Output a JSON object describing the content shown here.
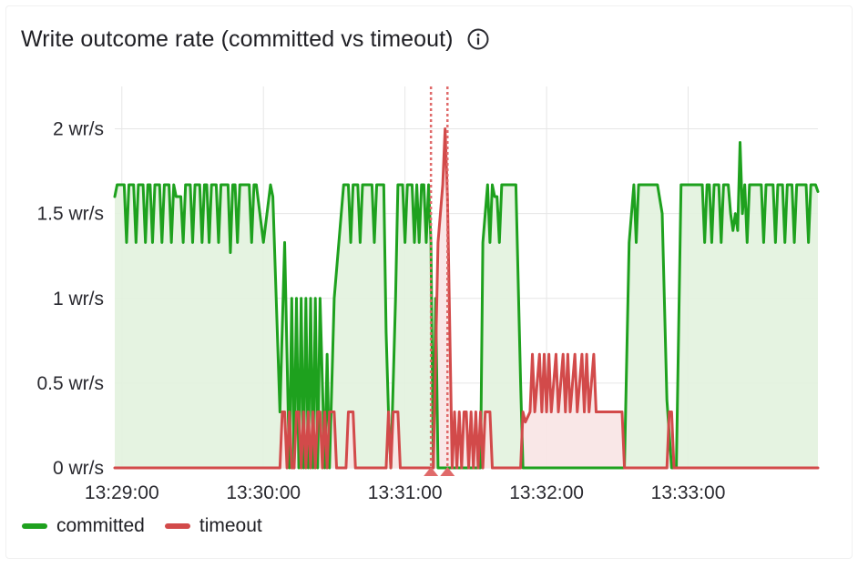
{
  "panel": {
    "title": "Write outcome rate (committed vs timeout)",
    "info_icon": "info-circle-icon"
  },
  "colors": {
    "committed_line": "#1ea11e",
    "committed_fill": "#e2f2de",
    "timeout_line": "#d24a4a",
    "timeout_fill": "#f8e4e4",
    "grid": "#e6e6e6",
    "axis_text": "#2a2a30",
    "annotation": "#e06a6a"
  },
  "chart_data": {
    "type": "area",
    "title": "Write outcome rate (committed vs timeout)",
    "xlabel": "",
    "ylabel": "",
    "x_unit": "time (HH:MM:SS)",
    "xlim": [
      "13:28:57",
      "13:33:55"
    ],
    "ylim": [
      0,
      2.25
    ],
    "x_ticks": [
      "13:29:00",
      "13:30:00",
      "13:31:00",
      "13:32:00",
      "13:33:00"
    ],
    "y_ticks": [
      {
        "value": 0,
        "label": "0 wr/s"
      },
      {
        "value": 0.5,
        "label": "0.5 wr/s"
      },
      {
        "value": 1,
        "label": "1 wr/s"
      },
      {
        "value": 1.5,
        "label": "1.5 wr/s"
      },
      {
        "value": 2,
        "label": "2 wr/s"
      }
    ],
    "grid": true,
    "legend_position": "bottom-left",
    "annotations": [
      {
        "type": "vertical-dashed-line",
        "x": "13:31:11"
      },
      {
        "type": "vertical-dashed-line",
        "x": "13:31:18"
      }
    ],
    "series": [
      {
        "name": "committed",
        "color": "#1ea11e",
        "fill": true,
        "points": [
          [
            "13:28:57",
            1.6
          ],
          [
            "13:28:58",
            1.67
          ],
          [
            "13:29:01",
            1.67
          ],
          [
            "13:29:02",
            1.33
          ],
          [
            "13:29:03",
            1.67
          ],
          [
            "13:29:05",
            1.67
          ],
          [
            "13:29:06",
            1.33
          ],
          [
            "13:29:07",
            1.67
          ],
          [
            "13:29:09",
            1.67
          ],
          [
            "13:29:10",
            1.33
          ],
          [
            "13:29:11",
            1.67
          ],
          [
            "13:29:12",
            1.67
          ],
          [
            "13:29:13",
            1.33
          ],
          [
            "13:29:14",
            1.67
          ],
          [
            "13:29:16",
            1.67
          ],
          [
            "13:29:17",
            1.33
          ],
          [
            "13:29:18",
            1.67
          ],
          [
            "13:29:20",
            1.67
          ],
          [
            "13:29:21",
            1.33
          ],
          [
            "13:29:22",
            1.67
          ],
          [
            "13:29:23",
            1.6
          ],
          [
            "13:29:25",
            1.6
          ],
          [
            "13:29:26",
            1.33
          ],
          [
            "13:29:27",
            1.67
          ],
          [
            "13:29:29",
            1.67
          ],
          [
            "13:29:30",
            1.33
          ],
          [
            "13:29:31",
            1.67
          ],
          [
            "13:29:33",
            1.67
          ],
          [
            "13:29:34",
            1.33
          ],
          [
            "13:29:35",
            1.67
          ],
          [
            "13:29:36",
            1.67
          ],
          [
            "13:29:37",
            1.33
          ],
          [
            "13:29:38",
            1.67
          ],
          [
            "13:29:40",
            1.67
          ],
          [
            "13:29:41",
            1.33
          ],
          [
            "13:29:42",
            1.67
          ],
          [
            "13:29:45",
            1.67
          ],
          [
            "13:29:46",
            1.27
          ],
          [
            "13:29:47",
            1.67
          ],
          [
            "13:29:48",
            1.67
          ],
          [
            "13:29:49",
            1.33
          ],
          [
            "13:29:50",
            1.67
          ],
          [
            "13:29:54",
            1.67
          ],
          [
            "13:29:55",
            1.33
          ],
          [
            "13:29:56",
            1.67
          ],
          [
            "13:29:57",
            1.67
          ],
          [
            "13:30:00",
            1.33
          ],
          [
            "13:30:03",
            1.67
          ],
          [
            "13:30:04",
            1.6
          ],
          [
            "13:30:07",
            0.33
          ],
          [
            "13:30:09",
            1.33
          ],
          [
            "13:30:11",
            0.0
          ],
          [
            "13:30:12",
            1.0
          ],
          [
            "13:30:13",
            0.0
          ],
          [
            "13:30:14",
            1.0
          ],
          [
            "13:30:15",
            0.0
          ],
          [
            "13:30:16",
            1.0
          ],
          [
            "13:30:17",
            0.0
          ],
          [
            "13:30:18",
            1.0
          ],
          [
            "13:30:19",
            0.0
          ],
          [
            "13:30:20",
            1.0
          ],
          [
            "13:30:21",
            0.0
          ],
          [
            "13:30:22",
            1.0
          ],
          [
            "13:30:23",
            0.0
          ],
          [
            "13:30:24",
            1.0
          ],
          [
            "13:30:26",
            0.0
          ],
          [
            "13:30:27",
            0.67
          ],
          [
            "13:30:28",
            0.0
          ],
          [
            "13:30:30",
            1.0
          ],
          [
            "13:30:34",
            1.67
          ],
          [
            "13:30:36",
            1.67
          ],
          [
            "13:30:37",
            1.33
          ],
          [
            "13:30:38",
            1.67
          ],
          [
            "13:30:40",
            1.67
          ],
          [
            "13:30:41",
            1.33
          ],
          [
            "13:30:42",
            1.67
          ],
          [
            "13:30:44",
            1.67
          ],
          [
            "13:30:46",
            1.67
          ],
          [
            "13:30:47",
            1.33
          ],
          [
            "13:30:48",
            1.67
          ],
          [
            "13:30:51",
            1.67
          ],
          [
            "13:30:52",
            0.8
          ],
          [
            "13:30:53",
            0.33
          ],
          [
            "13:30:54",
            0.0
          ],
          [
            "13:30:56",
            1.0
          ],
          [
            "13:30:57",
            1.67
          ],
          [
            "13:30:59",
            1.67
          ],
          [
            "13:31:00",
            1.33
          ],
          [
            "13:31:01",
            1.67
          ],
          [
            "13:31:03",
            1.67
          ],
          [
            "13:31:04",
            1.33
          ],
          [
            "13:31:05",
            1.67
          ],
          [
            "13:31:06",
            1.33
          ],
          [
            "13:31:07",
            1.67
          ],
          [
            "13:31:08",
            1.67
          ],
          [
            "13:31:09",
            1.33
          ],
          [
            "13:31:10",
            1.67
          ],
          [
            "13:31:11",
            1.33
          ],
          [
            "13:31:12",
            0.0
          ],
          [
            "13:31:13",
            1.0
          ],
          [
            "13:31:14",
            0.0
          ],
          [
            "13:31:30",
            0.0
          ],
          [
            "13:31:32",
            0.0
          ],
          [
            "13:31:33",
            1.33
          ],
          [
            "13:31:35",
            1.67
          ],
          [
            "13:31:36",
            1.33
          ],
          [
            "13:31:37",
            1.67
          ],
          [
            "13:31:38",
            1.6
          ],
          [
            "13:31:39",
            1.6
          ],
          [
            "13:31:40",
            1.33
          ],
          [
            "13:31:41",
            1.67
          ],
          [
            "13:31:47",
            1.67
          ],
          [
            "13:31:49",
            0.5
          ],
          [
            "13:31:50",
            0.0
          ],
          [
            "13:32:33",
            0.0
          ],
          [
            "13:32:35",
            1.33
          ],
          [
            "13:32:37",
            1.67
          ],
          [
            "13:32:38",
            1.33
          ],
          [
            "13:32:39",
            1.67
          ],
          [
            "13:32:47",
            1.67
          ],
          [
            "13:32:49",
            1.5
          ],
          [
            "13:32:51",
            0.4
          ],
          [
            "13:32:53",
            0.0
          ],
          [
            "13:32:55",
            0.0
          ],
          [
            "13:32:57",
            1.67
          ],
          [
            "13:33:06",
            1.67
          ],
          [
            "13:33:07",
            1.33
          ],
          [
            "13:33:08",
            1.67
          ],
          [
            "13:33:09",
            1.67
          ],
          [
            "13:33:10",
            1.33
          ],
          [
            "13:33:11",
            1.67
          ],
          [
            "13:33:13",
            1.67
          ],
          [
            "13:33:14",
            1.33
          ],
          [
            "13:33:15",
            1.67
          ],
          [
            "13:33:17",
            1.67
          ],
          [
            "13:33:18",
            1.5
          ],
          [
            "13:33:19",
            1.4
          ],
          [
            "13:33:20",
            1.5
          ],
          [
            "13:33:21",
            1.4
          ],
          [
            "13:33:22",
            1.92
          ],
          [
            "13:33:23",
            1.5
          ],
          [
            "13:33:24",
            1.67
          ],
          [
            "13:33:25",
            1.33
          ],
          [
            "13:33:26",
            1.67
          ],
          [
            "13:33:31",
            1.67
          ],
          [
            "13:33:32",
            1.33
          ],
          [
            "13:33:33",
            1.67
          ],
          [
            "13:33:36",
            1.67
          ],
          [
            "13:33:37",
            1.33
          ],
          [
            "13:33:38",
            1.67
          ],
          [
            "13:33:40",
            1.67
          ],
          [
            "13:33:41",
            1.33
          ],
          [
            "13:33:42",
            1.67
          ],
          [
            "13:33:44",
            1.67
          ],
          [
            "13:33:45",
            1.33
          ],
          [
            "13:33:46",
            1.67
          ],
          [
            "13:33:48",
            1.67
          ],
          [
            "13:33:50",
            1.67
          ],
          [
            "13:33:51",
            1.33
          ],
          [
            "13:33:52",
            1.67
          ],
          [
            "13:33:54",
            1.67
          ],
          [
            "13:33:55",
            1.63
          ]
        ]
      },
      {
        "name": "timeout",
        "color": "#d24a4a",
        "fill": true,
        "points": [
          [
            "13:28:57",
            0.0
          ],
          [
            "13:30:07",
            0.0
          ],
          [
            "13:30:08",
            0.33
          ],
          [
            "13:30:09",
            0.33
          ],
          [
            "13:30:10",
            0.0
          ],
          [
            "13:30:11",
            0.33
          ],
          [
            "13:30:12",
            0.0
          ],
          [
            "13:30:13",
            0.0
          ],
          [
            "13:30:14",
            0.33
          ],
          [
            "13:30:15",
            0.33
          ],
          [
            "13:30:16",
            0.0
          ],
          [
            "13:30:17",
            0.33
          ],
          [
            "13:30:18",
            0.0
          ],
          [
            "13:30:19",
            0.33
          ],
          [
            "13:30:20",
            0.0
          ],
          [
            "13:30:21",
            0.33
          ],
          [
            "13:30:22",
            0.0
          ],
          [
            "13:30:23",
            0.33
          ],
          [
            "13:30:24",
            0.33
          ],
          [
            "13:30:25",
            0.0
          ],
          [
            "13:30:26",
            0.33
          ],
          [
            "13:30:27",
            0.0
          ],
          [
            "13:30:28",
            0.33
          ],
          [
            "13:30:30",
            0.33
          ],
          [
            "13:30:31",
            0.0
          ],
          [
            "13:30:35",
            0.0
          ],
          [
            "13:30:36",
            0.33
          ],
          [
            "13:30:38",
            0.33
          ],
          [
            "13:30:39",
            0.0
          ],
          [
            "13:30:52",
            0.0
          ],
          [
            "13:30:53",
            0.33
          ],
          [
            "13:30:54",
            0.0
          ],
          [
            "13:30:55",
            0.33
          ],
          [
            "13:30:57",
            0.33
          ],
          [
            "13:30:58",
            0.0
          ],
          [
            "13:31:12",
            0.0
          ],
          [
            "13:31:14",
            1.33
          ],
          [
            "13:31:15",
            1.5
          ],
          [
            "13:31:16",
            1.67
          ],
          [
            "13:31:17",
            2.0
          ],
          [
            "13:31:18",
            1.6
          ],
          [
            "13:31:19",
            0.8
          ],
          [
            "13:31:20",
            0.0
          ],
          [
            "13:31:21",
            0.33
          ],
          [
            "13:31:22",
            0.0
          ],
          [
            "13:31:23",
            0.33
          ],
          [
            "13:31:24",
            0.0
          ],
          [
            "13:31:25",
            0.33
          ],
          [
            "13:31:26",
            0.33
          ],
          [
            "13:31:27",
            0.0
          ],
          [
            "13:31:28",
            0.33
          ],
          [
            "13:31:29",
            0.0
          ],
          [
            "13:31:30",
            0.33
          ],
          [
            "13:31:31",
            0.0
          ],
          [
            "13:31:32",
            0.33
          ],
          [
            "13:31:33",
            0.0
          ],
          [
            "13:31:34",
            0.33
          ],
          [
            "13:31:36",
            0.33
          ],
          [
            "13:31:37",
            0.0
          ],
          [
            "13:31:49",
            0.0
          ],
          [
            "13:31:50",
            0.33
          ],
          [
            "13:31:51",
            0.27
          ],
          [
            "13:31:53",
            0.33
          ],
          [
            "13:31:54",
            0.67
          ],
          [
            "13:31:55",
            0.33
          ],
          [
            "13:31:57",
            0.67
          ],
          [
            "13:31:58",
            0.33
          ],
          [
            "13:31:59",
            0.67
          ],
          [
            "13:32:00",
            0.33
          ],
          [
            "13:32:01",
            0.67
          ],
          [
            "13:32:02",
            0.33
          ],
          [
            "13:32:04",
            0.67
          ],
          [
            "13:32:05",
            0.33
          ],
          [
            "13:32:07",
            0.67
          ],
          [
            "13:32:08",
            0.33
          ],
          [
            "13:32:09",
            0.67
          ],
          [
            "13:32:10",
            0.33
          ],
          [
            "13:32:12",
            0.67
          ],
          [
            "13:32:13",
            0.33
          ],
          [
            "13:32:15",
            0.67
          ],
          [
            "13:32:16",
            0.33
          ],
          [
            "13:32:17",
            0.67
          ],
          [
            "13:32:18",
            0.33
          ],
          [
            "13:32:20",
            0.67
          ],
          [
            "13:32:21",
            0.33
          ],
          [
            "13:32:32",
            0.33
          ],
          [
            "13:32:33",
            0.0
          ],
          [
            "13:32:51",
            0.0
          ],
          [
            "13:32:52",
            0.33
          ],
          [
            "13:32:53",
            0.33
          ],
          [
            "13:32:54",
            0.0
          ],
          [
            "13:33:55",
            0.0
          ]
        ]
      }
    ]
  },
  "legend": {
    "items": [
      {
        "label": "committed",
        "color": "#1ea11e"
      },
      {
        "label": "timeout",
        "color": "#d24a4a"
      }
    ]
  }
}
